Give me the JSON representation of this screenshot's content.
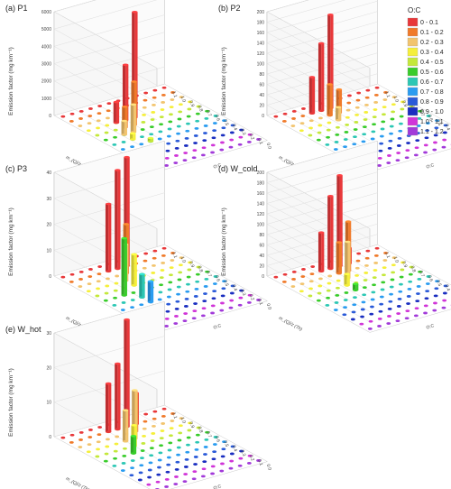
{
  "legend": {
    "title": "O:C",
    "items": [
      {
        "label": "0 - 0.1",
        "color": "#e8383a"
      },
      {
        "label": "0.1 - 0.2",
        "color": "#f07a2a"
      },
      {
        "label": "0.2 - 0.3",
        "color": "#f2c46e"
      },
      {
        "label": "0.3 - 0.4",
        "color": "#f5ef3a"
      },
      {
        "label": "0.4 - 0.5",
        "color": "#c4e83a"
      },
      {
        "label": "0.5 - 0.6",
        "color": "#39cc2b"
      },
      {
        "label": "0.6 - 0.7",
        "color": "#2cc7b4"
      },
      {
        "label": "0.7 - 0.8",
        "color": "#2a9cf0"
      },
      {
        "label": "0.8 - 0.9",
        "color": "#2a5ad8"
      },
      {
        "label": "0.9 - 1.0",
        "color": "#1a2ec0"
      },
      {
        "label": "1.0 - 1.1",
        "color": "#d035d8"
      },
      {
        "label": "1.1 - 1.2",
        "color": "#a23ad9"
      }
    ]
  },
  "axes_text": {
    "ylabel": "Emission factor (mg km⁻¹)",
    "xlabel": "m_{Q}/z (Th)",
    "zlabel": "O:C",
    "x_ticks": [
      "1.1",
      "1.0",
      "0.9",
      "0.8",
      "0.7",
      "0.6",
      "0.5",
      "0.4",
      "0.3",
      "0.2",
      "0.1",
      "0.0"
    ]
  },
  "chart_data": [
    {
      "type": "bar",
      "title": "(a) P1",
      "ylim": [
        0,
        6000
      ],
      "yticks": [
        0,
        1000,
        2000,
        3000,
        4000,
        5000,
        6000
      ],
      "bars": [
        {
          "row": 3,
          "col": 5,
          "value": 6100,
          "color": "#e8383a"
        },
        {
          "row": 3,
          "col": 4,
          "value": 3200,
          "color": "#e8383a"
        },
        {
          "row": 3,
          "col": 3,
          "value": 1200,
          "color": "#e8383a"
        },
        {
          "row": 4,
          "col": 4,
          "value": 2500,
          "color": "#f07a2a"
        },
        {
          "row": 4,
          "col": 3,
          "value": 1200,
          "color": "#f07a2a"
        },
        {
          "row": 5,
          "col": 2,
          "value": 800,
          "color": "#f2c46e"
        },
        {
          "row": 5,
          "col": 3,
          "value": 1600,
          "color": "#f2c46e"
        },
        {
          "row": 6,
          "col": 2,
          "value": 350,
          "color": "#f5ef3a"
        },
        {
          "row": 7,
          "col": 3,
          "value": 200,
          "color": "#c4e83a"
        }
      ]
    },
    {
      "type": "bar",
      "title": "(b) P2",
      "ylim": [
        0,
        200
      ],
      "yticks": [
        0,
        20,
        40,
        60,
        80,
        100,
        120,
        140,
        160,
        180,
        200
      ],
      "bars": [
        {
          "row": 1,
          "col": 5,
          "value": 180,
          "color": "#e8383a"
        },
        {
          "row": 1,
          "col": 4,
          "value": 130,
          "color": "#e8383a"
        },
        {
          "row": 1,
          "col": 3,
          "value": 70,
          "color": "#e8383a"
        },
        {
          "row": 2,
          "col": 4,
          "value": 60,
          "color": "#f07a2a"
        },
        {
          "row": 2,
          "col": 5,
          "value": 45,
          "color": "#f07a2a"
        },
        {
          "row": 3,
          "col": 4,
          "value": 25,
          "color": "#f2c46e"
        }
      ]
    },
    {
      "type": "bar",
      "title": "(c) P3",
      "ylim": [
        0,
        40
      ],
      "yticks": [
        0,
        10,
        20,
        30,
        40
      ],
      "bars": [
        {
          "row": 1,
          "col": 6,
          "value": 44,
          "color": "#e8383a"
        },
        {
          "row": 1,
          "col": 5,
          "value": 38,
          "color": "#e8383a"
        },
        {
          "row": 1,
          "col": 4,
          "value": 26,
          "color": "#e8383a"
        },
        {
          "row": 2,
          "col": 5,
          "value": 19,
          "color": "#f07a2a"
        },
        {
          "row": 3,
          "col": 4,
          "value": 14,
          "color": "#f2c46e"
        },
        {
          "row": 4,
          "col": 4,
          "value": 12,
          "color": "#f5ef3a"
        },
        {
          "row": 5,
          "col": 2,
          "value": 22,
          "color": "#39cc2b"
        },
        {
          "row": 6,
          "col": 3,
          "value": 9,
          "color": "#2cc7b4"
        },
        {
          "row": 7,
          "col": 3,
          "value": 8,
          "color": "#2a9cf0"
        },
        {
          "row": 10,
          "col": 1,
          "value": 5,
          "color": "#d035d8"
        }
      ]
    },
    {
      "type": "bar",
      "title": "(d) W_cold",
      "ylim": [
        0,
        200
      ],
      "yticks": [
        0,
        20,
        40,
        60,
        80,
        100,
        120,
        140,
        160,
        180,
        200
      ],
      "bars": [
        {
          "row": 1,
          "col": 6,
          "value": 175,
          "color": "#e8383a"
        },
        {
          "row": 1,
          "col": 5,
          "value": 140,
          "color": "#e8383a"
        },
        {
          "row": 1,
          "col": 4,
          "value": 75,
          "color": "#e8383a"
        },
        {
          "row": 1,
          "col": 7,
          "value": 30,
          "color": "#e8383a"
        },
        {
          "row": 2,
          "col": 6,
          "value": 95,
          "color": "#f07a2a"
        },
        {
          "row": 2,
          "col": 5,
          "value": 60,
          "color": "#f07a2a"
        },
        {
          "row": 3,
          "col": 5,
          "value": 70,
          "color": "#f2c46e"
        },
        {
          "row": 4,
          "col": 4,
          "value": 22,
          "color": "#f5ef3a"
        },
        {
          "row": 5,
          "col": 4,
          "value": 12,
          "color": "#39cc2b"
        }
      ]
    },
    {
      "type": "bar",
      "title": "(e) W_hot",
      "ylim": [
        0,
        30
      ],
      "yticks": [
        0,
        10,
        20,
        30
      ],
      "bars": [
        {
          "row": 1,
          "col": 6,
          "value": 31,
          "color": "#e8383a"
        },
        {
          "row": 1,
          "col": 5,
          "value": 19,
          "color": "#e8383a"
        },
        {
          "row": 1,
          "col": 4,
          "value": 14,
          "color": "#e8383a"
        },
        {
          "row": 1,
          "col": 7,
          "value": 9,
          "color": "#e8383a"
        },
        {
          "row": 2,
          "col": 6,
          "value": 11,
          "color": "#f07a2a"
        },
        {
          "row": 3,
          "col": 5,
          "value": 14,
          "color": "#f2c46e"
        },
        {
          "row": 3,
          "col": 4,
          "value": 9,
          "color": "#f2c46e"
        },
        {
          "row": 4,
          "col": 4,
          "value": 6,
          "color": "#f5ef3a"
        },
        {
          "row": 5,
          "col": 3,
          "value": 5,
          "color": "#39cc2b"
        }
      ]
    }
  ]
}
